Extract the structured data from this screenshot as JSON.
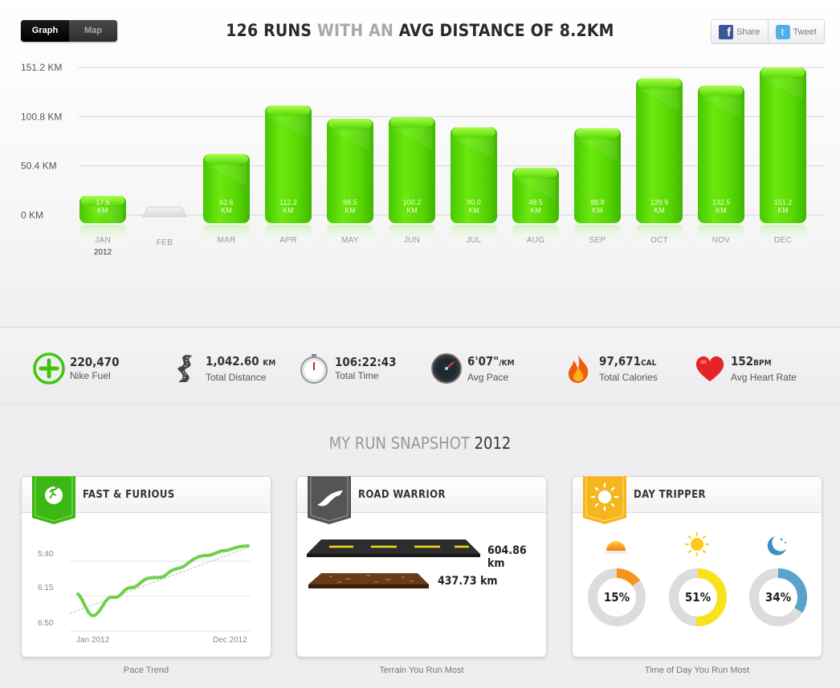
{
  "toggle": {
    "graph": "Graph",
    "map": "Map"
  },
  "headline": {
    "part1": "126 RUNS",
    "part2": "WITH AN",
    "part3": "AVG DISTANCE OF 8.2KM"
  },
  "share": {
    "facebook": "Share",
    "twitter": "Tweet"
  },
  "colors": {
    "bar": "#4fd600",
    "bar_light": "#8ef21a",
    "empty_bar": "#e6e6e6",
    "accent_green": "#3fc40b"
  },
  "chart_data": {
    "type": "bar",
    "title": "",
    "xlabel": "",
    "ylabel": "",
    "ylim": [
      0,
      151.2
    ],
    "yticks": [
      "0 KM",
      "50.4 KM",
      "100.8 KM",
      "151.2 KM"
    ],
    "ytick_values": [
      0,
      50.4,
      100.8,
      151.2
    ],
    "categories": [
      "JAN",
      "FEB",
      "MAR",
      "APR",
      "MAY",
      "JUN",
      "JUL",
      "AUG",
      "SEP",
      "OCT",
      "NOV",
      "DEC"
    ],
    "values": [
      17.6,
      0,
      62.6,
      112.2,
      98.5,
      100.2,
      90.0,
      48.5,
      88.8,
      139.9,
      132.5,
      151.2
    ],
    "value_labels": [
      "17.6",
      "",
      "62.6",
      "112.2",
      "98.5",
      "100.2",
      "90.0",
      "48.5",
      "88.8",
      "139.9",
      "132.5",
      "151.2"
    ],
    "value_unit": "KM",
    "year_label": "2012",
    "grid": true
  },
  "stats": [
    {
      "value": "220,470",
      "unit": "",
      "label": "Nike Fuel",
      "icon": "nike-fuel-icon"
    },
    {
      "value": "1,042.60",
      "unit": "KM",
      "label": "Total Distance",
      "icon": "road-icon"
    },
    {
      "value": "106:22:43",
      "unit": "",
      "label": "Total Time",
      "icon": "stopwatch-icon"
    },
    {
      "value": "6'07\"",
      "unit": "/KM",
      "label": "Avg Pace",
      "icon": "speedometer-icon"
    },
    {
      "value": "97,671",
      "unit": "CAL",
      "label": "Total Calories",
      "icon": "flame-icon"
    },
    {
      "value": "152",
      "unit": "BPM",
      "label": "Avg Heart Rate",
      "icon": "heart-icon"
    }
  ],
  "snapshot": {
    "light": "MY RUN SNAPSHOT",
    "dark": "2012"
  },
  "cards": {
    "pace": {
      "title": "FAST & FURIOUS",
      "caption": "Pace Trend",
      "yticks": [
        "5:40",
        "6:15",
        "6:50"
      ],
      "x_start": "Jan 2012",
      "x_end": "Dec 2012"
    },
    "terrain": {
      "title": "ROAD WARRIOR",
      "caption": "Terrain You Run Most",
      "road": "604.86 km",
      "trail": "437.73 km"
    },
    "time": {
      "title": "DAY TRIPPER",
      "caption": "Time of Day You Run Most",
      "items": [
        {
          "pct": "15%",
          "value": 15,
          "color": "#f7941d",
          "icon": "sunrise-icon"
        },
        {
          "pct": "51%",
          "value": 51,
          "color": "#f9e21b",
          "icon": "sun-icon"
        },
        {
          "pct": "34%",
          "value": 34,
          "color": "#5aa3c8",
          "icon": "moon-icon"
        }
      ]
    }
  }
}
